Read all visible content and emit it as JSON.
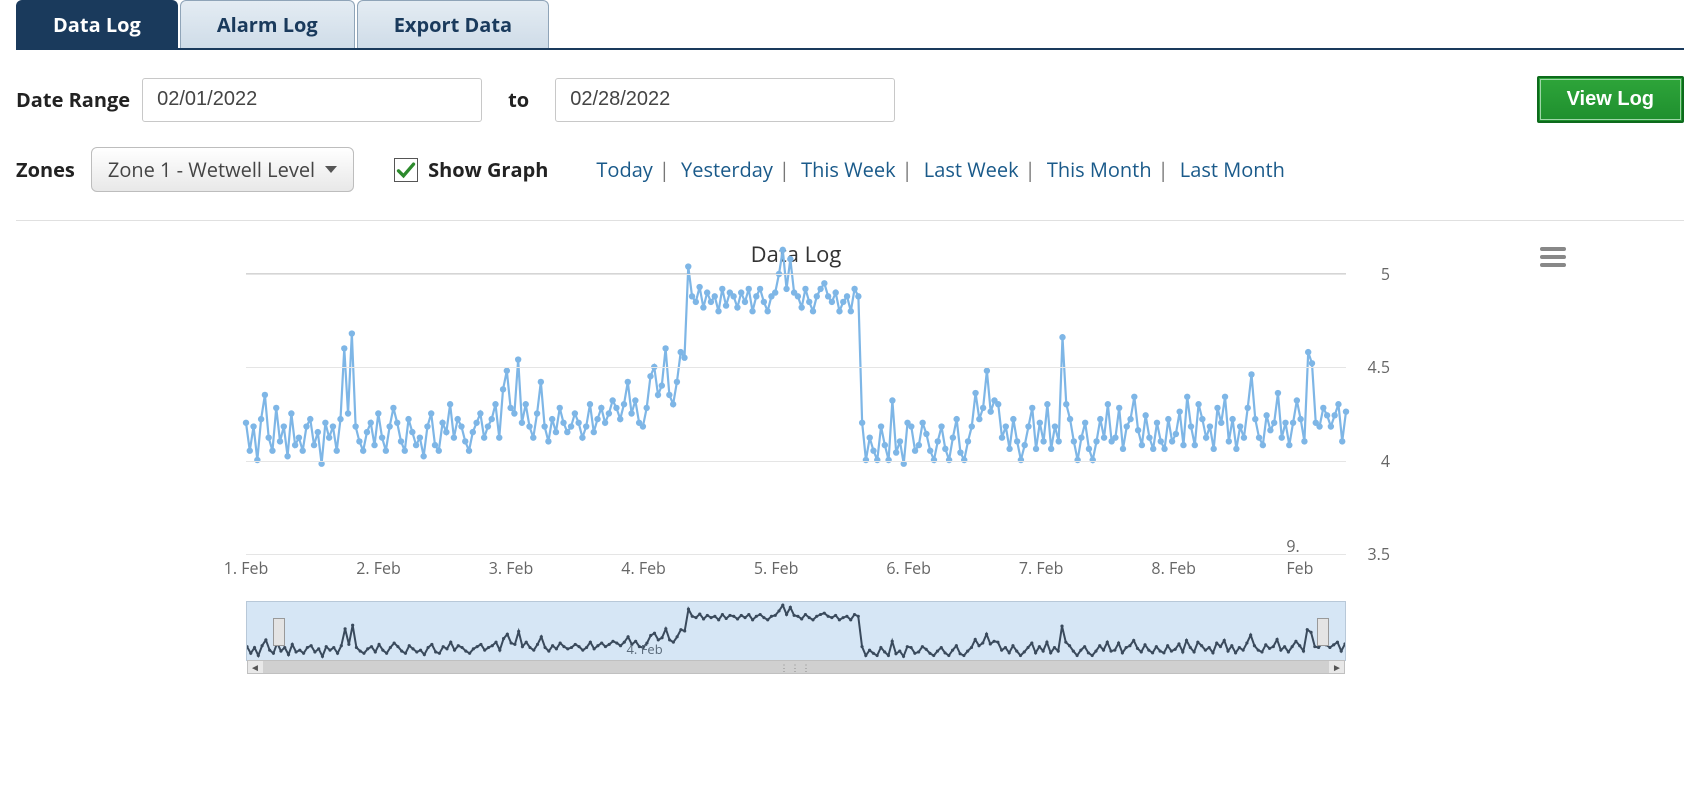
{
  "tabs": [
    {
      "label": "Data Log",
      "active": true
    },
    {
      "label": "Alarm Log",
      "active": false
    },
    {
      "label": "Export Data",
      "active": false
    }
  ],
  "dateRange": {
    "label": "Date Range",
    "from": "02/01/2022",
    "toLabel": "to",
    "to": "02/28/2022"
  },
  "viewLogButton": "View Log",
  "zones": {
    "label": "Zones",
    "selected": "Zone 1 - Wetwell Level"
  },
  "showGraph": {
    "label": "Show Graph",
    "checked": true
  },
  "quickLinks": [
    "Today",
    "Yesterday",
    "This Week",
    "Last Week",
    "This Month",
    "Last Month"
  ],
  "chart": {
    "title": "Data Log",
    "type": "line",
    "line_color": "#7eb6e6",
    "marker_color": "#7eb6e6",
    "marker_radius": 3.2,
    "line_width": 2.2,
    "grid_color": "#e5e5e5",
    "background_color": "#ffffff",
    "ylim": [
      3.5,
      5.0
    ],
    "yticks": [
      3.5,
      4,
      4.5,
      5
    ],
    "ytick_labels": [
      "3.5",
      "4",
      "4.5",
      "5"
    ],
    "xticks": [
      1,
      2,
      3,
      4,
      5,
      6,
      7,
      8,
      9
    ],
    "xtick_labels": [
      "1. Feb",
      "2. Feb",
      "3. Feb",
      "4. Feb",
      "5. Feb",
      "6. Feb",
      "7. Feb",
      "8. Feb",
      "9. Feb"
    ],
    "xlim": [
      1.0,
      9.3
    ],
    "values": [
      4.2,
      4.05,
      4.18,
      4.0,
      4.22,
      4.35,
      4.12,
      4.05,
      4.28,
      4.1,
      4.18,
      4.02,
      4.25,
      4.08,
      4.12,
      4.05,
      4.18,
      4.22,
      4.08,
      4.15,
      3.98,
      4.2,
      4.12,
      4.18,
      4.05,
      4.22,
      4.6,
      4.25,
      4.68,
      4.18,
      4.1,
      4.05,
      4.15,
      4.2,
      4.08,
      4.25,
      4.12,
      4.05,
      4.18,
      4.28,
      4.2,
      4.1,
      4.05,
      4.22,
      4.15,
      4.08,
      4.12,
      4.02,
      4.18,
      4.25,
      4.08,
      4.05,
      4.2,
      4.15,
      4.3,
      4.12,
      4.22,
      4.18,
      4.1,
      4.05,
      4.15,
      4.2,
      4.25,
      4.12,
      4.18,
      4.22,
      4.3,
      4.12,
      4.38,
      4.48,
      4.28,
      4.25,
      4.54,
      4.2,
      4.3,
      4.18,
      4.12,
      4.25,
      4.42,
      4.18,
      4.1,
      4.22,
      4.15,
      4.28,
      4.2,
      4.15,
      4.18,
      4.25,
      4.2,
      4.12,
      4.18,
      4.3,
      4.15,
      4.22,
      4.28,
      4.2,
      4.25,
      4.32,
      4.28,
      4.22,
      4.3,
      4.42,
      4.25,
      4.32,
      4.2,
      4.18,
      4.28,
      4.45,
      4.5,
      4.35,
      4.4,
      4.6,
      4.35,
      4.3,
      4.42,
      4.58,
      4.55,
      5.04,
      4.88,
      4.85,
      4.93,
      4.82,
      4.9,
      4.85,
      4.88,
      4.8,
      4.92,
      4.83,
      4.9,
      4.88,
      4.82,
      4.9,
      4.85,
      4.92,
      4.8,
      4.88,
      4.92,
      4.85,
      4.8,
      4.88,
      4.9,
      5.0,
      5.13,
      4.92,
      5.08,
      4.9,
      4.88,
      4.82,
      4.92,
      4.85,
      4.8,
      4.88,
      4.92,
      4.95,
      4.88,
      4.85,
      4.9,
      4.8,
      4.85,
      4.88,
      4.8,
      4.92,
      4.88,
      4.2,
      4.0,
      4.12,
      4.05,
      4.0,
      4.18,
      4.08,
      4.0,
      4.32,
      4.04,
      4.1,
      3.98,
      4.2,
      4.18,
      4.05,
      4.08,
      4.2,
      4.14,
      4.05,
      4.0,
      4.1,
      4.18,
      4.06,
      4.0,
      4.12,
      4.22,
      4.04,
      4.0,
      4.1,
      4.18,
      4.36,
      4.22,
      4.28,
      4.48,
      4.26,
      4.32,
      4.3,
      4.12,
      4.18,
      4.06,
      4.22,
      4.1,
      4.0,
      4.08,
      4.18,
      4.28,
      4.06,
      4.2,
      4.1,
      4.3,
      4.06,
      4.18,
      4.1,
      4.66,
      4.3,
      4.22,
      4.1,
      4.0,
      4.12,
      4.2,
      4.06,
      4.0,
      4.1,
      4.22,
      4.12,
      4.3,
      4.1,
      4.12,
      4.28,
      4.06,
      4.18,
      4.22,
      4.34,
      4.16,
      4.08,
      4.24,
      4.12,
      4.06,
      4.2,
      4.1,
      4.06,
      4.22,
      4.1,
      4.14,
      4.26,
      4.08,
      4.34,
      4.18,
      4.08,
      4.3,
      4.22,
      4.12,
      4.18,
      4.06,
      4.28,
      4.2,
      4.34,
      4.1,
      4.22,
      4.06,
      4.18,
      4.12,
      4.28,
      4.46,
      4.22,
      4.12,
      4.08,
      4.24,
      4.16,
      4.2,
      4.36,
      4.12,
      4.2,
      4.08,
      4.2,
      4.32,
      4.22,
      4.1,
      4.58,
      4.52,
      4.2,
      4.18,
      4.28,
      4.24,
      4.18,
      4.24,
      4.3,
      4.1,
      4.26
    ]
  },
  "navigator": {
    "line_color": "#3a4a5c",
    "fill_color": "#d6e6f5",
    "xtick_labels": [
      "4. Feb"
    ],
    "xtick_positions": [
      4
    ]
  },
  "colors": {
    "tab_active_bg": "#1a3a5c",
    "tab_inactive_bg_top": "#e4ecf3",
    "tab_inactive_bg_bottom": "#cfdce8",
    "button_green_top": "#2ea53a",
    "button_green_bottom": "#1f8f2e",
    "link_color": "#1a5a8a",
    "check_color": "#2c8a2c"
  }
}
